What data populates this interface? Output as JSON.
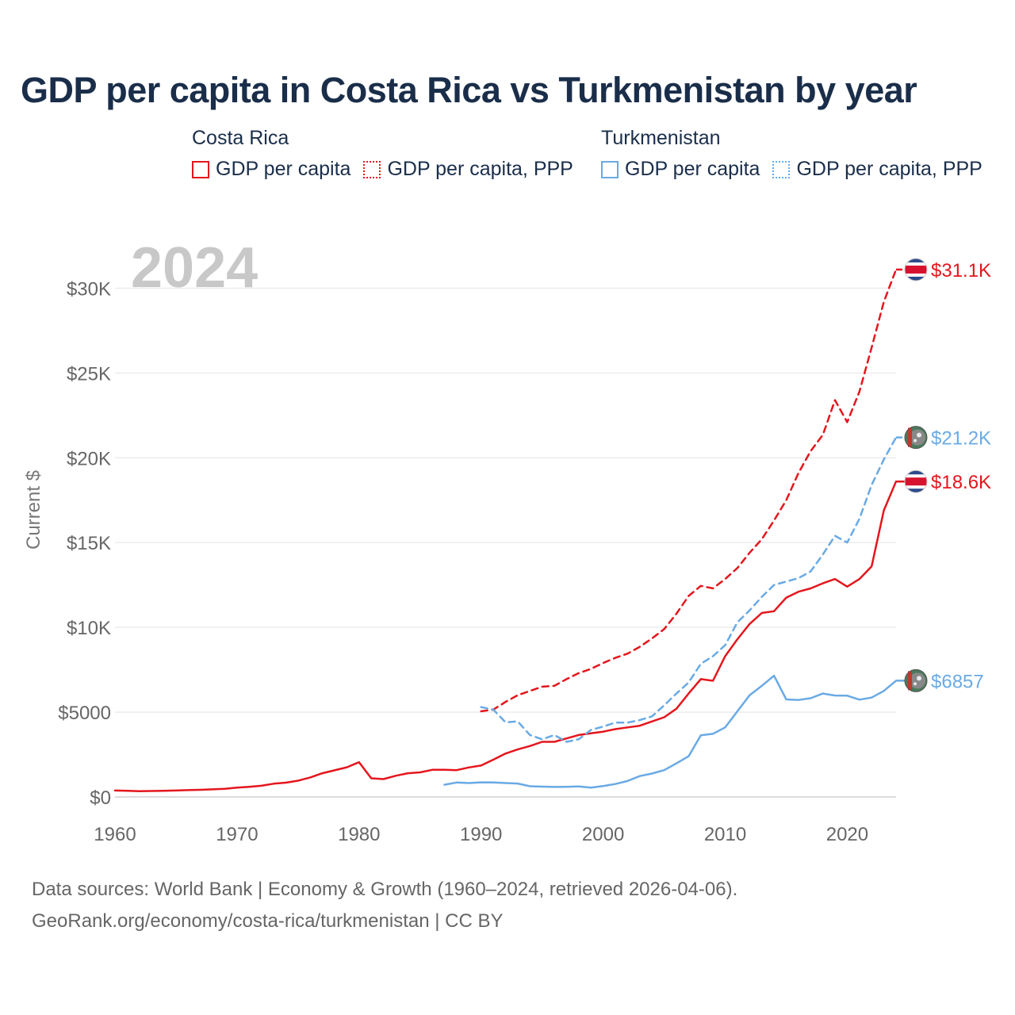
{
  "chart_data": {
    "type": "line",
    "title": "GDP per capita in Costa Rica vs Turkmenistan by year",
    "year_badge": "2024",
    "ylabel": "Current $",
    "xlabel": "",
    "xlim": [
      1960,
      2024
    ],
    "ylim": [
      0,
      32500
    ],
    "x_ticks": [
      1960,
      1970,
      1980,
      1990,
      2000,
      2010,
      2020
    ],
    "y_ticks": [
      {
        "value": 0,
        "label": "$0"
      },
      {
        "value": 5000,
        "label": "$5000"
      },
      {
        "value": 10000,
        "label": "$10K"
      },
      {
        "value": 15000,
        "label": "$15K"
      },
      {
        "value": 20000,
        "label": "$20K"
      },
      {
        "value": 25000,
        "label": "$25K"
      },
      {
        "value": 30000,
        "label": "$30K"
      }
    ],
    "legend_groups": [
      {
        "name": "Costa Rica",
        "items": [
          {
            "label": "GDP per capita",
            "color": "#e4161d",
            "style": "solid"
          },
          {
            "label": "GDP per capita, PPP",
            "color": "#e4161d",
            "style": "dotted"
          }
        ]
      },
      {
        "name": "Turkmenistan",
        "items": [
          {
            "label": "GDP per capita",
            "color": "#6aaae4",
            "style": "solid"
          },
          {
            "label": "GDP per capita, PPP",
            "color": "#6aaae4",
            "style": "dotted"
          }
        ]
      }
    ],
    "series": [
      {
        "name": "Costa Rica GDP per capita",
        "country": "costa-rica",
        "color": "#e4161d",
        "dash": "solid",
        "end_label": "$18.6K",
        "x": [
          1960,
          1961,
          1962,
          1963,
          1964,
          1965,
          1966,
          1967,
          1968,
          1969,
          1970,
          1971,
          1972,
          1973,
          1974,
          1975,
          1976,
          1977,
          1978,
          1979,
          1980,
          1981,
          1982,
          1983,
          1984,
          1985,
          1986,
          1987,
          1988,
          1989,
          1990,
          1991,
          1992,
          1993,
          1994,
          1995,
          1996,
          1997,
          1998,
          1999,
          2000,
          2001,
          2002,
          2003,
          2004,
          2005,
          2006,
          2007,
          2008,
          2009,
          2010,
          2011,
          2012,
          2013,
          2014,
          2015,
          2016,
          2017,
          2018,
          2019,
          2020,
          2021,
          2022,
          2023,
          2024
        ],
        "values": [
          380,
          360,
          340,
          350,
          360,
          380,
          400,
          420,
          450,
          480,
          550,
          600,
          660,
          780,
          840,
          960,
          1150,
          1400,
          1570,
          1750,
          2050,
          1100,
          1050,
          1250,
          1400,
          1450,
          1600,
          1600,
          1580,
          1740,
          1850,
          2200,
          2560,
          2800,
          3000,
          3250,
          3250,
          3450,
          3650,
          3750,
          3850,
          4000,
          4100,
          4200,
          4450,
          4700,
          5200,
          6100,
          6950,
          6850,
          8300,
          9300,
          10200,
          10850,
          10950,
          11750,
          12100,
          12300,
          12600,
          12850,
          12400,
          12850,
          13600,
          16900,
          18600
        ]
      },
      {
        "name": "Costa Rica GDP per capita, PPP",
        "country": "costa-rica",
        "color": "#e4161d",
        "dash": "dashed",
        "end_label": "$31.1K",
        "x": [
          1990,
          1991,
          1992,
          1993,
          1994,
          1995,
          1996,
          1997,
          1998,
          1999,
          2000,
          2001,
          2002,
          2003,
          2004,
          2005,
          2006,
          2007,
          2008,
          2009,
          2010,
          2011,
          2012,
          2013,
          2014,
          2015,
          2016,
          2017,
          2018,
          2019,
          2020,
          2021,
          2022,
          2023,
          2024
        ],
        "values": [
          5050,
          5150,
          5600,
          6000,
          6250,
          6500,
          6550,
          6950,
          7300,
          7550,
          7900,
          8200,
          8450,
          8850,
          9350,
          9900,
          10800,
          11850,
          12450,
          12300,
          12850,
          13500,
          14400,
          15200,
          16300,
          17500,
          19100,
          20400,
          21350,
          23400,
          22100,
          23900,
          26500,
          29200,
          31100
        ]
      },
      {
        "name": "Turkmenistan GDP per capita",
        "country": "turkmenistan",
        "color": "#6aaae4",
        "dash": "solid",
        "end_label": "$6857",
        "x": [
          1987,
          1988,
          1989,
          1990,
          1991,
          1992,
          1993,
          1994,
          1995,
          1996,
          1997,
          1998,
          1999,
          2000,
          2001,
          2002,
          2003,
          2004,
          2005,
          2006,
          2007,
          2008,
          2009,
          2010,
          2011,
          2012,
          2013,
          2014,
          2015,
          2016,
          2017,
          2018,
          2019,
          2020,
          2021,
          2022,
          2023,
          2024
        ],
        "values": [
          720,
          850,
          820,
          860,
          850,
          820,
          790,
          630,
          610,
          590,
          600,
          620,
          550,
          640,
          760,
          940,
          1230,
          1380,
          1580,
          1980,
          2400,
          3640,
          3720,
          4100,
          5050,
          6000,
          6550,
          7150,
          5750,
          5720,
          5820,
          6100,
          5980,
          5970,
          5740,
          5860,
          6250,
          6857
        ]
      },
      {
        "name": "Turkmenistan GDP per capita, PPP",
        "country": "turkmenistan",
        "color": "#6aaae4",
        "dash": "dashed",
        "end_label": "$21.2K",
        "x": [
          1990,
          1991,
          1992,
          1993,
          1994,
          1995,
          1996,
          1997,
          1998,
          1999,
          2000,
          2001,
          2002,
          2003,
          2004,
          2005,
          2006,
          2007,
          2008,
          2009,
          2010,
          2011,
          2012,
          2013,
          2014,
          2015,
          2016,
          2017,
          2018,
          2019,
          2020,
          2021,
          2022,
          2023,
          2024
        ],
        "values": [
          5300,
          5150,
          4400,
          4450,
          3650,
          3400,
          3650,
          3250,
          3400,
          3950,
          4150,
          4380,
          4380,
          4530,
          4750,
          5400,
          6100,
          6750,
          7850,
          8300,
          8950,
          10300,
          11000,
          11800,
          12500,
          12700,
          12900,
          13300,
          14300,
          15400,
          15000,
          16400,
          18400,
          19900,
          21200
        ]
      }
    ]
  },
  "footer": {
    "line1": "Data sources: World Bank | Economy & Growth (1960–2024, retrieved 2026-04-06).",
    "line2": "GeoRank.org/economy/costa-rica/turkmenistan | CC BY"
  }
}
